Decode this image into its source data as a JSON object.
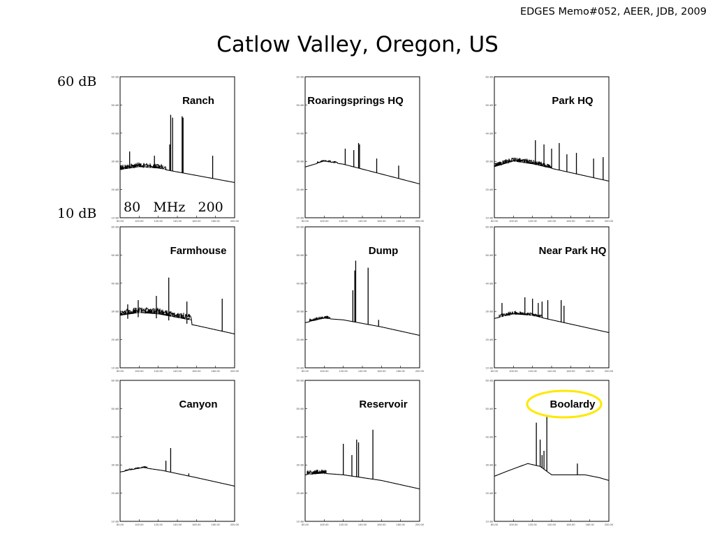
{
  "memo": "EDGES Memo#052, AEER, JDB, 2009",
  "title": "Catlow Valley, Oregon, US",
  "ylabel_top": "60 dB",
  "ylabel_bottom": "10 dB",
  "xlabel": {
    "start": "80",
    "unit": "MHz",
    "end": "200"
  },
  "colors": {
    "line": "#000000",
    "highlight": "#ffe800"
  },
  "chart_data": [
    {
      "type": "line",
      "title": "Ranch",
      "xlim": [
        80,
        200
      ],
      "ylim": [
        10,
        60
      ],
      "baseline": [
        [
          80,
          27.0
        ],
        [
          100,
          28.0
        ],
        [
          120,
          27.5
        ],
        [
          160,
          25.0
        ],
        [
          200,
          22.5
        ]
      ],
      "noise": {
        "x": [
          80,
          128
        ],
        "amp": 1.5
      },
      "spikes": [
        [
          90,
          33.5
        ],
        [
          116,
          32.0
        ],
        [
          132,
          36.0
        ],
        [
          133,
          46.5
        ],
        [
          135,
          45.5
        ],
        [
          145,
          46.0
        ],
        [
          146,
          45.5
        ],
        [
          177,
          32.0
        ]
      ]
    },
    {
      "type": "line",
      "title": "Roaringsprings HQ",
      "xlim": [
        80,
        200
      ],
      "ylim": [
        10,
        60
      ],
      "baseline": [
        [
          80,
          28.0
        ],
        [
          100,
          30.0
        ],
        [
          120,
          29.0
        ],
        [
          160,
          25.5
        ],
        [
          200,
          22.0
        ]
      ],
      "noise": {
        "x": [
          93,
          114
        ],
        "amp": 0.6
      },
      "spikes": [
        [
          122,
          34.5
        ],
        [
          131,
          34.0
        ],
        [
          136,
          36.5
        ],
        [
          137,
          36.0
        ],
        [
          155,
          31.0
        ],
        [
          178,
          28.5
        ]
      ]
    },
    {
      "type": "line",
      "title": "Park HQ",
      "xlim": [
        80,
        200
      ],
      "ylim": [
        10,
        60
      ],
      "baseline": [
        [
          80,
          28.0
        ],
        [
          100,
          30.0
        ],
        [
          120,
          29.0
        ],
        [
          160,
          26.0
        ],
        [
          200,
          23.0
        ]
      ],
      "noise": {
        "x": [
          80,
          140
        ],
        "amp": 1.4
      },
      "spikes": [
        [
          123,
          37.5
        ],
        [
          132,
          36.0
        ],
        [
          140,
          34.5
        ],
        [
          148,
          36.5
        ],
        [
          156,
          32.5
        ],
        [
          166,
          33.0
        ],
        [
          184,
          31.0
        ],
        [
          194,
          31.5
        ]
      ]
    },
    {
      "type": "line",
      "title": "Farmhouse",
      "xlim": [
        80,
        200
      ],
      "ylim": [
        10,
        60
      ],
      "baseline": [
        [
          80,
          27.0
        ],
        [
          100,
          28.0
        ],
        [
          120,
          27.5
        ],
        [
          160,
          25.0
        ],
        [
          200,
          22.0
        ]
      ],
      "noise": {
        "x": [
          80,
          155
        ],
        "amp": 2.0,
        "offset": 1.5
      },
      "spikes": [
        [
          88,
          32.5
        ],
        [
          99,
          34.0
        ],
        [
          118,
          35.5
        ],
        [
          131,
          42.0
        ],
        [
          150,
          33.5
        ],
        [
          187,
          34.5
        ]
      ]
    },
    {
      "type": "line",
      "title": "Dump",
      "xlim": [
        80,
        200
      ],
      "ylim": [
        10,
        60
      ],
      "baseline": [
        [
          80,
          26.0
        ],
        [
          100,
          27.5
        ],
        [
          120,
          27.0
        ],
        [
          160,
          24.5
        ],
        [
          200,
          21.5
        ]
      ],
      "noise": {
        "x": [
          85,
          106
        ],
        "amp": 0.9
      },
      "spikes": [
        [
          130,
          37.5
        ],
        [
          132,
          44.5
        ],
        [
          133,
          48.0
        ],
        [
          146,
          45.5
        ],
        [
          157,
          27.0
        ]
      ]
    },
    {
      "type": "line",
      "title": "Near Park HQ",
      "xlim": [
        80,
        200
      ],
      "ylim": [
        10,
        60
      ],
      "baseline": [
        [
          80,
          27.5
        ],
        [
          100,
          29.0
        ],
        [
          120,
          28.5
        ],
        [
          160,
          25.5
        ],
        [
          200,
          22.5
        ]
      ],
      "noise": {
        "x": [
          85,
          130
        ],
        "amp": 1.0
      },
      "spikes": [
        [
          88,
          33.0
        ],
        [
          112,
          35.0
        ],
        [
          120,
          34.5
        ],
        [
          126,
          33.0
        ],
        [
          130,
          33.5
        ],
        [
          136,
          34.0
        ],
        [
          150,
          34.0
        ],
        [
          153,
          32.0
        ]
      ]
    },
    {
      "type": "line",
      "title": "Canyon",
      "xlim": [
        80,
        200
      ],
      "ylim": [
        10,
        60
      ],
      "baseline": [
        [
          80,
          27.5
        ],
        [
          105,
          29.0
        ],
        [
          125,
          28.0
        ],
        [
          160,
          25.5
        ],
        [
          200,
          22.5
        ]
      ],
      "noise": {
        "x": [
          85,
          108
        ],
        "amp": 0.5
      },
      "spikes": [
        [
          128,
          31.5
        ],
        [
          133,
          36.0
        ],
        [
          152,
          27.0
        ]
      ]
    },
    {
      "type": "line",
      "title": "Reservoir",
      "xlim": [
        80,
        200
      ],
      "ylim": [
        10,
        60
      ],
      "baseline": [
        [
          80,
          26.5
        ],
        [
          100,
          27.0
        ],
        [
          120,
          26.5
        ],
        [
          160,
          24.5
        ],
        [
          200,
          21.5
        ]
      ],
      "noise": {
        "x": [
          82,
          102
        ],
        "amp": 1.4
      },
      "spikes": [
        [
          120,
          37.5
        ],
        [
          129,
          33.5
        ],
        [
          134,
          39.0
        ],
        [
          136,
          38.0
        ],
        [
          151,
          42.5
        ]
      ]
    },
    {
      "type": "line",
      "title": "Boolardy",
      "xlim": [
        80,
        200
      ],
      "ylim": [
        10,
        60
      ],
      "baseline": [
        [
          80,
          26.0
        ],
        [
          95,
          28.0
        ],
        [
          115,
          30.5
        ],
        [
          128,
          29.5
        ],
        [
          140,
          26.5
        ],
        [
          160,
          26.5
        ],
        [
          175,
          26.5
        ],
        [
          190,
          25.5
        ],
        [
          200,
          24.5
        ]
      ],
      "noise": {
        "x": [
          0,
          0
        ],
        "amp": 0
      },
      "spikes": [
        [
          124,
          45.0
        ],
        [
          128,
          39.0
        ],
        [
          130,
          33.5
        ],
        [
          132,
          35.0
        ],
        [
          135,
          47.0
        ],
        [
          167,
          30.5
        ]
      ],
      "highlighted": true
    }
  ]
}
